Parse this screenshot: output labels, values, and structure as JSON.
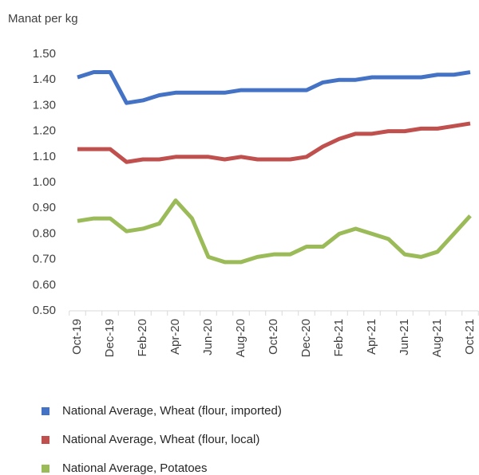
{
  "chart_data": {
    "type": "line",
    "y_axis_label": "Manat per kg",
    "categories": [
      "Oct-19",
      null,
      "Dec-19",
      null,
      "Feb-20",
      null,
      "Apr-20",
      null,
      "Jun-20",
      null,
      "Aug-20",
      null,
      "Oct-20",
      null,
      "Dec-20",
      null,
      "Feb-21",
      null,
      "Apr-21",
      null,
      "Jun-21",
      null,
      "Aug-21",
      null,
      "Oct-21"
    ],
    "series": [
      {
        "name": "National Average, Wheat (flour, imported)",
        "color": "#4472c4",
        "values": [
          1.41,
          1.43,
          1.43,
          1.31,
          1.32,
          1.34,
          1.35,
          1.35,
          1.35,
          1.35,
          1.36,
          1.36,
          1.36,
          1.36,
          1.36,
          1.39,
          1.4,
          1.4,
          1.41,
          1.41,
          1.41,
          1.41,
          1.42,
          1.42,
          1.43
        ]
      },
      {
        "name": "National Average, Wheat (flour, local)",
        "color": "#c0504d",
        "values": [
          1.13,
          1.13,
          1.13,
          1.08,
          1.09,
          1.09,
          1.1,
          1.1,
          1.1,
          1.09,
          1.1,
          1.09,
          1.09,
          1.09,
          1.1,
          1.14,
          1.17,
          1.19,
          1.19,
          1.2,
          1.2,
          1.21,
          1.21,
          1.22,
          1.23
        ]
      },
      {
        "name": "National Average, Potatoes",
        "color": "#9bbb59",
        "values": [
          0.85,
          0.86,
          0.86,
          0.81,
          0.82,
          0.84,
          0.93,
          0.86,
          0.71,
          0.69,
          0.69,
          0.71,
          0.72,
          0.72,
          0.75,
          0.75,
          0.8,
          0.82,
          0.8,
          0.78,
          0.72,
          0.71,
          0.73,
          0.8,
          0.87
        ]
      }
    ],
    "ylim": [
      0.5,
      1.5
    ],
    "yticks": [
      {
        "value": 0.5,
        "label": "0.50"
      },
      {
        "value": 0.6,
        "label": "0.60"
      },
      {
        "value": 0.7,
        "label": "0.70"
      },
      {
        "value": 0.8,
        "label": "0.80"
      },
      {
        "value": 0.9,
        "label": "0.90"
      },
      {
        "value": 1.0,
        "label": "1.00"
      },
      {
        "value": 1.1,
        "label": "1.10"
      },
      {
        "value": 1.2,
        "label": "1.20"
      },
      {
        "value": 1.3,
        "label": "1.30"
      },
      {
        "value": 1.4,
        "label": "1.40"
      },
      {
        "value": 1.5,
        "label": "1.50"
      }
    ],
    "legend": "bottom"
  }
}
